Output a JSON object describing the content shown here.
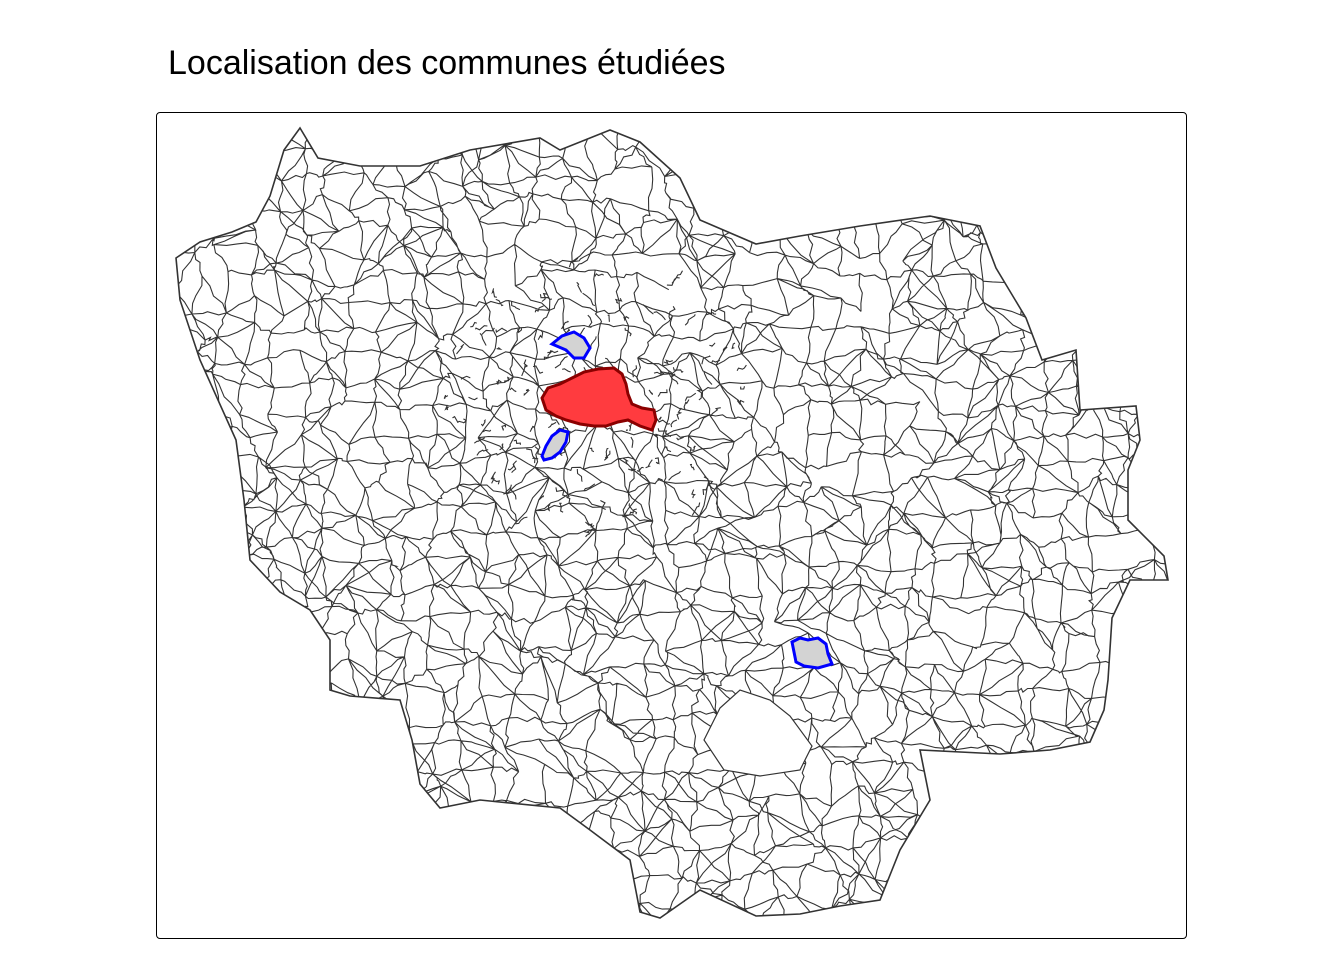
{
  "map": {
    "title": "Localisation des communes étudiées",
    "region_outline_color": "#333333",
    "highlight": {
      "fill": "#ff3b3f",
      "stroke": "#8b0000",
      "label": ""
    },
    "studied": {
      "fill": "#d3d3d3",
      "stroke": "#0000ff"
    },
    "background": "#ffffff"
  }
}
